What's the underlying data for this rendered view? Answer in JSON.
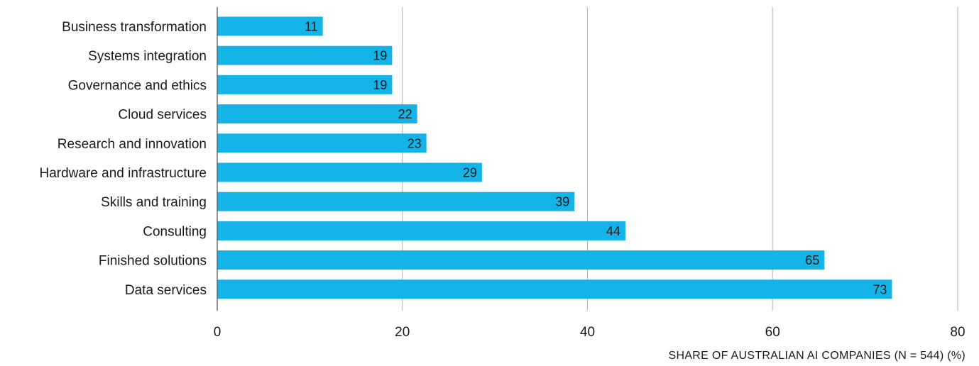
{
  "chart_data": {
    "type": "bar",
    "orientation": "horizontal",
    "categories": [
      "Business transformation",
      "Systems integration",
      "Governance and ethics",
      "Cloud services",
      "Research and innovation",
      "Hardware and infrastructure",
      "Skills and training",
      "Consulting",
      "Finished solutions",
      "Data services"
    ],
    "values": [
      11,
      19,
      19,
      22,
      23,
      29,
      39,
      44,
      65,
      73
    ],
    "bar_values": [
      11.4,
      18.9,
      18.9,
      21.6,
      22.6,
      28.6,
      38.6,
      44.1,
      65.6,
      72.9
    ],
    "xlabel": "SHARE OF AUSTRALIAN AI COMPANIES (N = 544) (%)",
    "ylabel": "",
    "xlim": [
      0,
      80
    ],
    "xticks": [
      0,
      20,
      40,
      60,
      80
    ],
    "grid": "vertical",
    "bar_color": "#14b4e8",
    "grid_color": "#b3b3b3",
    "axis_color": "#4d4d4d",
    "text_color": "#1a1a1a"
  }
}
